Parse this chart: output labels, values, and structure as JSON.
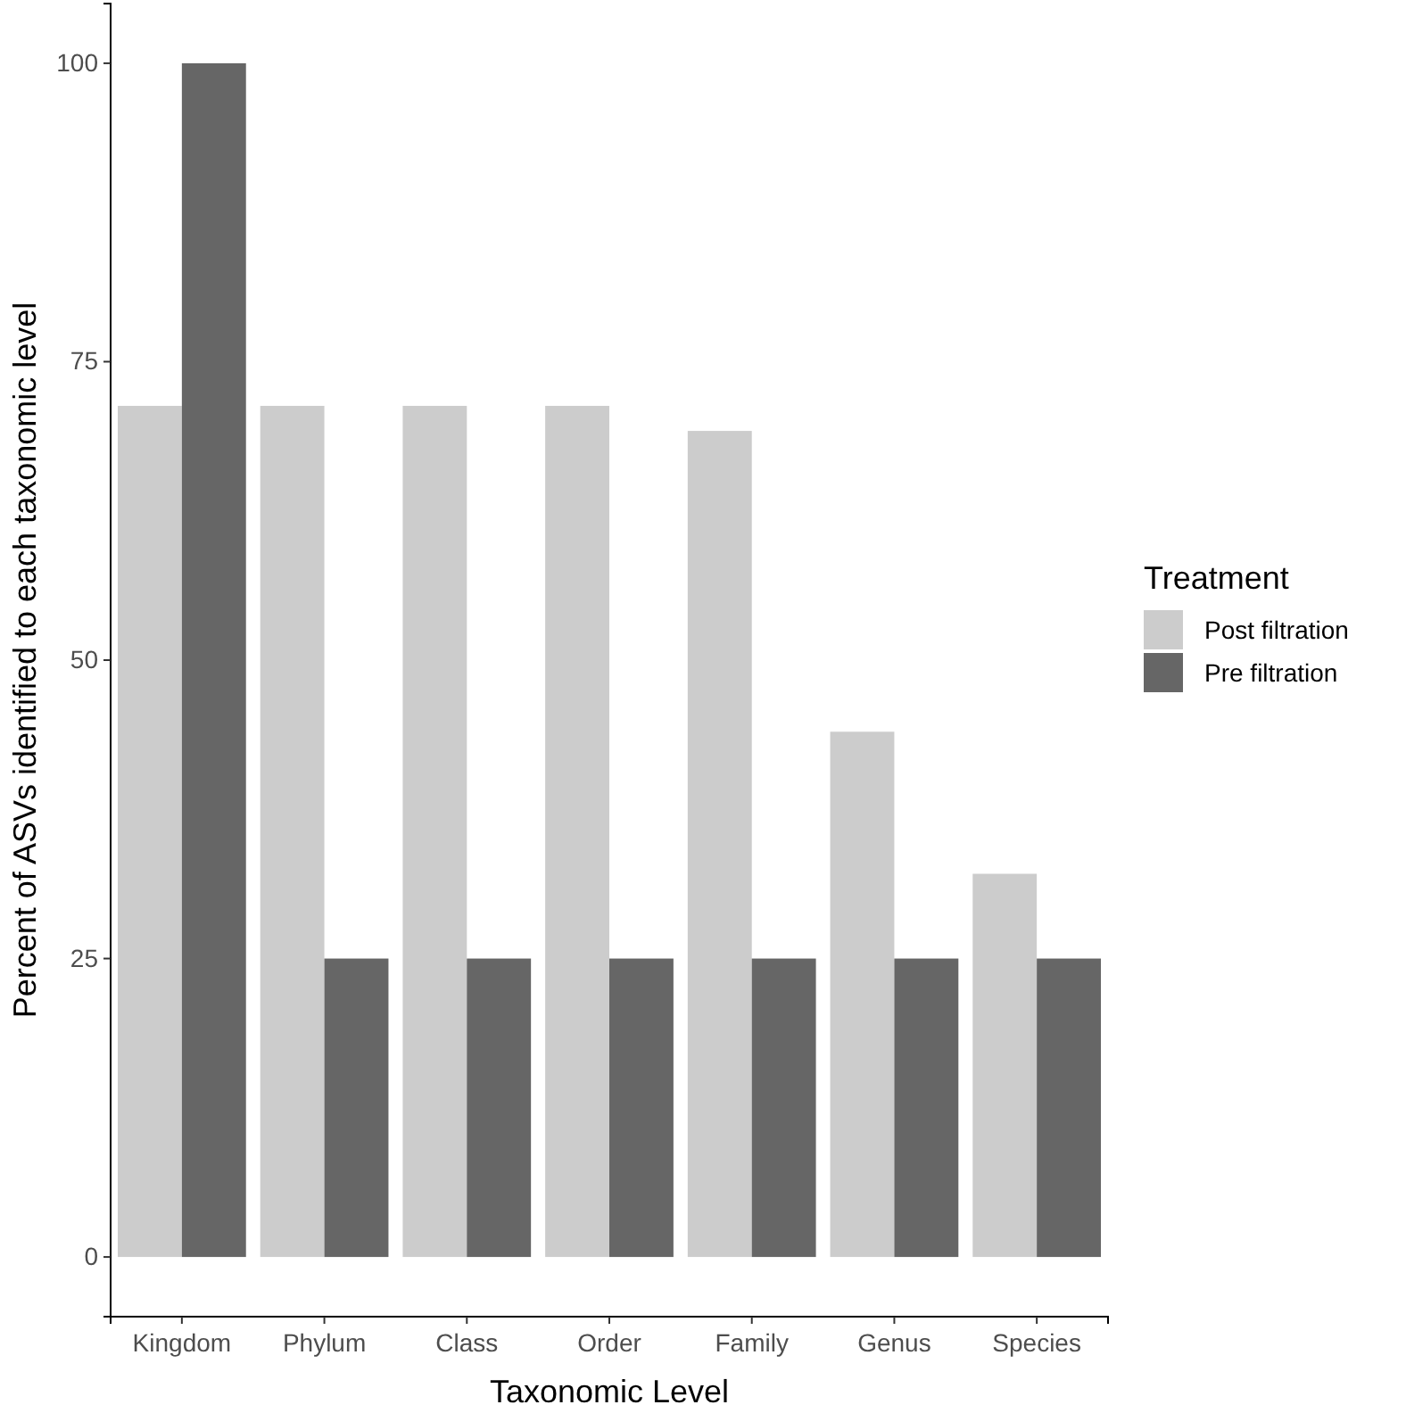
{
  "chart_data": {
    "type": "bar",
    "xlabel": "Taxonomic Level",
    "ylabel": "Percent of ASVs identified to each taxonomic level",
    "legend_title": "Treatment",
    "categories": [
      "Kingdom",
      "Phylum",
      "Class",
      "Order",
      "Family",
      "Genus",
      "Species"
    ],
    "series": [
      {
        "name": "Post filtration",
        "color": "#cccccc",
        "values": [
          71.3,
          71.3,
          71.3,
          71.3,
          69.2,
          44.0,
          32.1
        ]
      },
      {
        "name": "Pre filtration",
        "color": "#666666",
        "values": [
          100,
          25,
          25,
          25,
          25,
          25,
          25
        ]
      }
    ],
    "ylim": [
      -5,
      105
    ],
    "yticks": [
      0,
      25,
      50,
      75,
      100
    ],
    "grid": false,
    "legend": "right"
  }
}
